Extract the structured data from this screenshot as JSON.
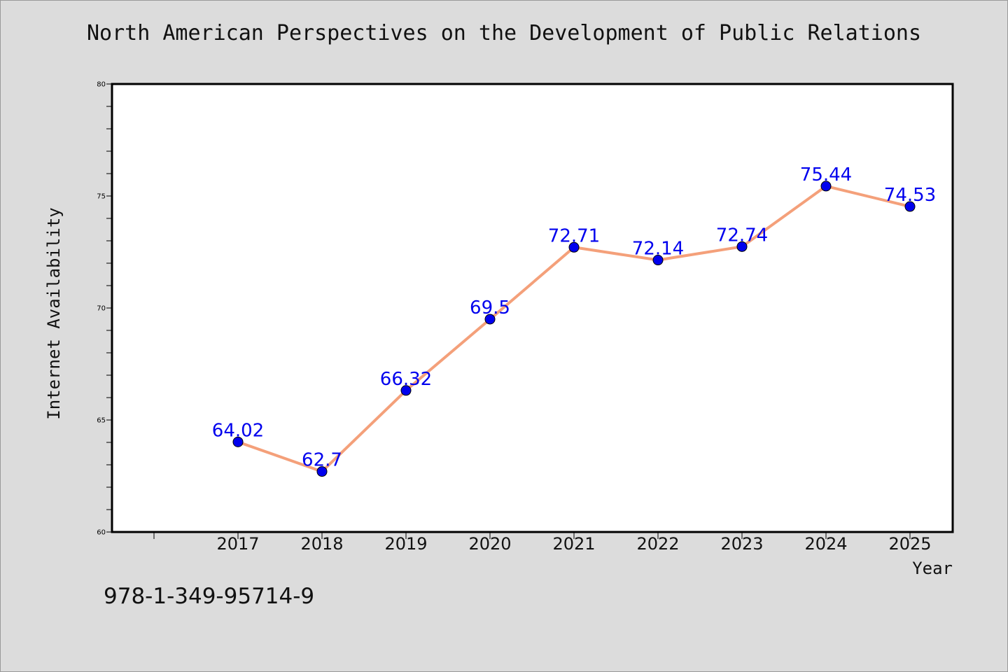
{
  "chart_data": {
    "type": "line",
    "title": "North American Perspectives on the Development of Public Relations",
    "xlabel": "Year",
    "ylabel": "Internet Availability",
    "x": [
      "2017",
      "2018",
      "2019",
      "2020",
      "2021",
      "2022",
      "2023",
      "2024",
      "2025"
    ],
    "series": [
      {
        "values": [
          64.02,
          62.7,
          66.32,
          69.5,
          72.71,
          72.14,
          72.74,
          75.44,
          74.53
        ],
        "data_labels": [
          "64.02",
          "62.7",
          "66.32",
          "69.5",
          "72.71",
          "72.14",
          "72.74",
          "75.44",
          "74.53"
        ],
        "line_color": "#f4a07a",
        "marker_color": "#0000ee",
        "label_color": "#0000ee"
      }
    ],
    "ylim": [
      60,
      80
    ],
    "yticks": [
      "60",
      "65",
      "70",
      "75",
      "80"
    ],
    "grid": false,
    "legend": "none"
  },
  "footer": {
    "isbn": "978-1-349-95714-9"
  }
}
